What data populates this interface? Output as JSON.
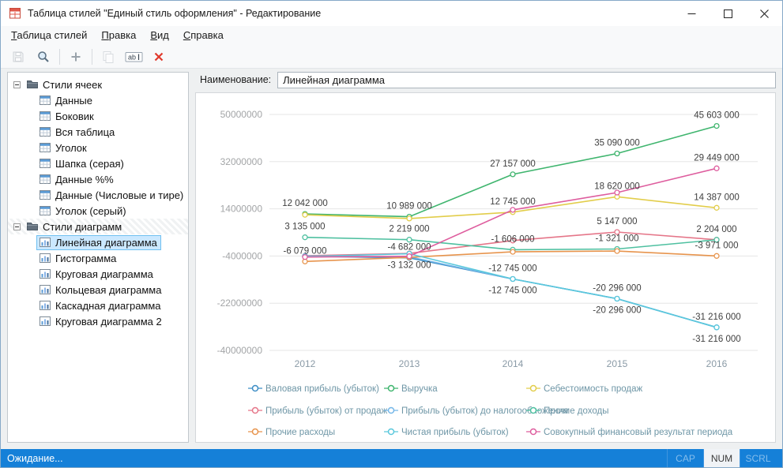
{
  "window": {
    "title": "Таблица стилей \"Единый стиль оформления\" - Редактирование"
  },
  "menu": [
    "Таблица стилей",
    "Правка",
    "Вид",
    "Справка"
  ],
  "toolbar": {
    "items": [
      {
        "type": "button",
        "name": "save",
        "icon": "save-floppy-icon",
        "enabled": false
      },
      {
        "type": "button",
        "name": "preview",
        "icon": "magnifier-icon",
        "enabled": true
      },
      {
        "type": "separator"
      },
      {
        "type": "button",
        "name": "add",
        "icon": "plus-icon",
        "enabled": true
      },
      {
        "type": "separator"
      },
      {
        "type": "button",
        "name": "copy",
        "icon": "copy-icon",
        "enabled": false
      },
      {
        "type": "button",
        "name": "rename",
        "icon": "rename-ab-icon",
        "enabled": true,
        "glyph": "ab"
      },
      {
        "type": "button",
        "name": "delete",
        "icon": "delete-x-icon",
        "enabled": true
      }
    ]
  },
  "tree": {
    "groups": [
      {
        "label": "Стили ячеек",
        "expanded": true,
        "icon": "folder-icon",
        "hatched": false,
        "children": [
          {
            "label": "Данные",
            "icon": "cell-style-icon",
            "selected": false
          },
          {
            "label": "Боковик",
            "icon": "cell-style-icon",
            "selected": false
          },
          {
            "label": "Вся таблица",
            "icon": "cell-style-icon",
            "selected": false
          },
          {
            "label": "Уголок",
            "icon": "cell-style-icon",
            "selected": false
          },
          {
            "label": "Шапка (серая)",
            "icon": "cell-style-icon",
            "selected": false
          },
          {
            "label": "Данные %%",
            "icon": "cell-style-icon",
            "selected": false
          },
          {
            "label": "Данные (Числовые и тире)",
            "icon": "cell-style-icon",
            "selected": false
          },
          {
            "label": "Уголок (серый)",
            "icon": "cell-style-icon",
            "selected": false
          }
        ]
      },
      {
        "label": "Стили диаграмм",
        "expanded": true,
        "icon": "folder-icon",
        "hatched": true,
        "children": [
          {
            "label": "Линейная диаграмма",
            "icon": "chart-style-icon",
            "selected": true
          },
          {
            "label": "Гистограмма",
            "icon": "chart-style-icon",
            "selected": false
          },
          {
            "label": "Круговая диаграмма",
            "icon": "chart-style-icon",
            "selected": false
          },
          {
            "label": "Кольцевая диаграмма",
            "icon": "chart-style-icon",
            "selected": false
          },
          {
            "label": "Каскадная диаграмма",
            "icon": "chart-style-icon",
            "selected": false
          },
          {
            "label": "Круговая диаграмма 2",
            "icon": "chart-style-icon",
            "selected": false
          }
        ]
      }
    ]
  },
  "editor": {
    "name_label": "Наименование:",
    "name_value": "Линейная диаграмма"
  },
  "chart_data": {
    "type": "line",
    "categories": [
      "2012",
      "2013",
      "2014",
      "2015",
      "2016"
    ],
    "y_ticks": [
      50000000,
      32000000,
      14000000,
      -4000000,
      -22000000,
      -40000000
    ],
    "ylim": [
      -40000000,
      50000000
    ],
    "grid": "horizontal",
    "legend_position": "bottom",
    "legend_columns": 3,
    "series": [
      {
        "name": "Валовая прибыль (убыток)",
        "color": "#3c8dc5",
        "values": [
          -4100000,
          -4682000,
          -12745000,
          -20296000,
          -31216000
        ]
      },
      {
        "name": "Выручка",
        "color": "#3fb56e",
        "values": [
          12042000,
          10989000,
          27157000,
          35090000,
          45603000
        ]
      },
      {
        "name": "Себестоимость продаж",
        "color": "#e2cd4a",
        "values": [
          11700000,
          10300000,
          12745000,
          18620000,
          14387000
        ]
      },
      {
        "name": "Прибыль (убыток) от продаж",
        "color": "#e57689",
        "values": [
          -3900000,
          -3000000,
          1900000,
          5147000,
          2204000
        ]
      },
      {
        "name": "Прибыль (убыток) до налогообложения",
        "color": "#74b7e8",
        "values": [
          -4000000,
          -4300000,
          -12745000,
          -20296000,
          -31216000
        ]
      },
      {
        "name": "Прочие доходы",
        "color": "#4ec0a0",
        "values": [
          3135000,
          2219000,
          -1606000,
          -1321000,
          2204000
        ]
      },
      {
        "name": "Прочие расходы",
        "color": "#e7944d",
        "values": [
          -6079000,
          -4500000,
          -2400000,
          -2100000,
          -3971000
        ]
      },
      {
        "name": "Чистая прибыль (убыток)",
        "color": "#5ac8dc",
        "values": [
          -4200000,
          -3132000,
          -12745000,
          -20296000,
          -31216000
        ]
      },
      {
        "name": "Совокупный финансовый результат периода",
        "color": "#de5d9e",
        "values": [
          -4400000,
          -4100000,
          13600000,
          20200000,
          29449000
        ]
      }
    ],
    "point_labels": [
      {
        "series": 1,
        "category": 0,
        "text": "12 042 000",
        "place": "above"
      },
      {
        "series": 5,
        "category": 0,
        "text": "3 135 000",
        "place": "above"
      },
      {
        "series": 6,
        "category": 0,
        "text": "-6 079 000",
        "place": "above"
      },
      {
        "series": 1,
        "category": 1,
        "text": "10 989 000",
        "place": "above"
      },
      {
        "series": 5,
        "category": 1,
        "text": "2 219 000",
        "place": "above"
      },
      {
        "series": 0,
        "category": 1,
        "text": "-4 682 000",
        "place": "above"
      },
      {
        "series": 7,
        "category": 1,
        "text": "-3 132 000",
        "place": "below"
      },
      {
        "series": 1,
        "category": 2,
        "text": "27 157 000",
        "place": "above"
      },
      {
        "series": 2,
        "category": 2,
        "text": "12 745 000",
        "place": "above"
      },
      {
        "series": 5,
        "category": 2,
        "text": "-1 606 000",
        "place": "above"
      },
      {
        "series": 0,
        "category": 2,
        "text": "-12 745 000",
        "place": "above"
      },
      {
        "series": 7,
        "category": 2,
        "text": "-12 745 000",
        "place": "below"
      },
      {
        "series": 1,
        "category": 3,
        "text": "35 090 000",
        "place": "above"
      },
      {
        "series": 2,
        "category": 3,
        "text": "18 620 000",
        "place": "above"
      },
      {
        "series": 3,
        "category": 3,
        "text": "5 147 000",
        "place": "above"
      },
      {
        "series": 5,
        "category": 3,
        "text": "-1 321 000",
        "place": "above"
      },
      {
        "series": 0,
        "category": 3,
        "text": "-20 296 000",
        "place": "above"
      },
      {
        "series": 7,
        "category": 3,
        "text": "-20 296 000",
        "place": "below"
      },
      {
        "series": 1,
        "category": 4,
        "text": "45 603 000",
        "place": "above"
      },
      {
        "series": 8,
        "category": 4,
        "text": "29 449 000",
        "place": "above"
      },
      {
        "series": 2,
        "category": 4,
        "text": "14 387 000",
        "place": "above"
      },
      {
        "series": 5,
        "category": 4,
        "text": "2 204 000",
        "place": "above"
      },
      {
        "series": 6,
        "category": 4,
        "text": "-3 971 000",
        "place": "above"
      },
      {
        "series": 0,
        "category": 4,
        "text": "-31 216 000",
        "place": "above"
      },
      {
        "series": 7,
        "category": 4,
        "text": "-31 216 000",
        "place": "below"
      }
    ]
  },
  "status_bar": {
    "text": "Ожидание...",
    "indicators": [
      {
        "label": "CAP",
        "active": false
      },
      {
        "label": "NUM",
        "active": true
      },
      {
        "label": "SCRL",
        "active": false
      }
    ]
  }
}
